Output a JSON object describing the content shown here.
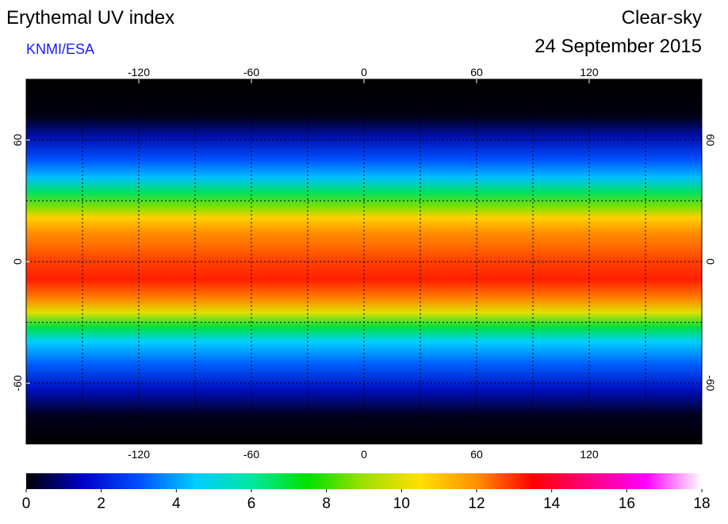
{
  "header": {
    "title": "Erythemal UV index",
    "source": "KNMI/ESA",
    "condition": "Clear-sky",
    "date": "24 September 2015"
  },
  "map": {
    "xlim": [
      -180,
      180
    ],
    "ylim": [
      -90,
      90
    ],
    "xticks": [
      -120,
      -60,
      0,
      60,
      120
    ],
    "yticks": [
      60,
      0,
      -60
    ]
  },
  "colorbar": {
    "lim": [
      0,
      18
    ],
    "ticks": [
      0,
      2,
      4,
      6,
      8,
      10,
      12,
      14,
      16,
      18
    ],
    "colors": [
      "#000000",
      "#0000c8",
      "#0050ff",
      "#00ccff",
      "#00e8a0",
      "#00e000",
      "#a0e000",
      "#ffe000",
      "#ff9000",
      "#ff0000",
      "#ff0080",
      "#ff00ff",
      "#ffffff"
    ]
  }
}
